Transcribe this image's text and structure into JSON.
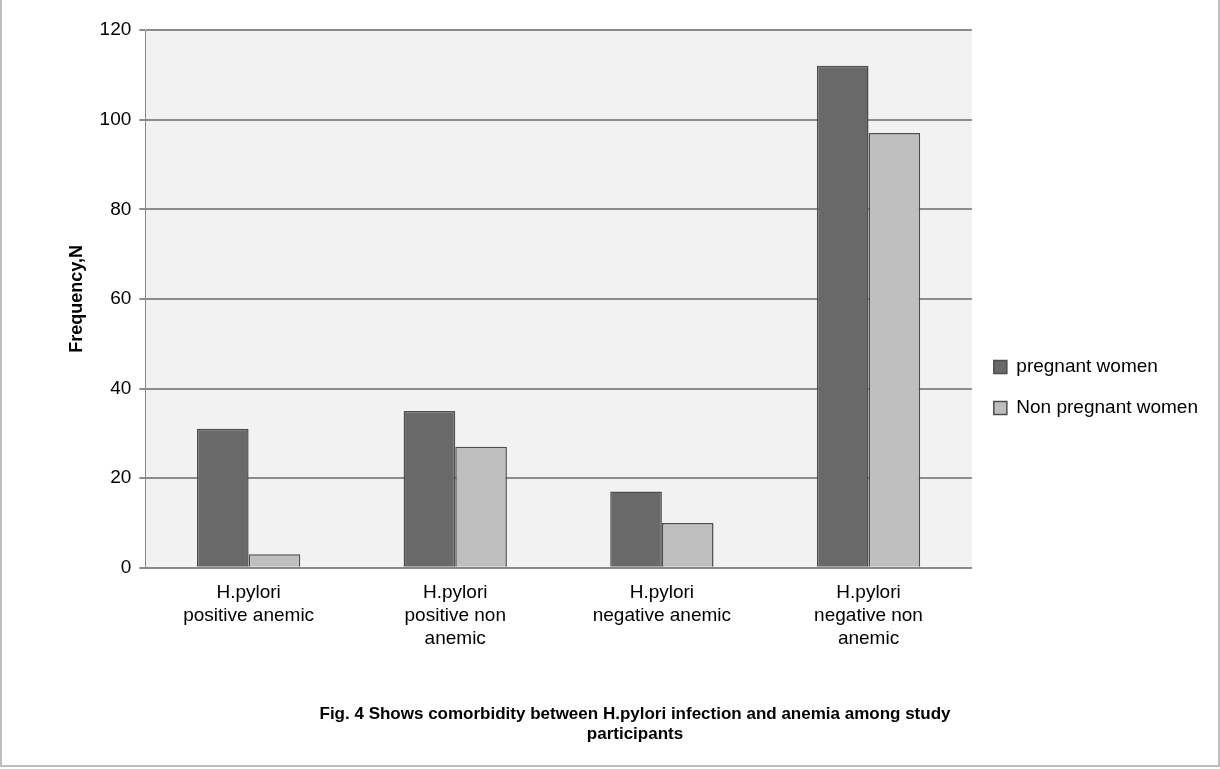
{
  "chart_data": {
    "type": "bar",
    "title": "Fig. 4 Shows comorbidity between H.pylori infection and anemia among study participants",
    "ylabel": "Frequency,N",
    "categories": [
      "H.pylori positive anemic",
      "H.pylori positive non anemic",
      "H.pylori negative anemic",
      "H.pylori negative non anemic"
    ],
    "series": [
      {
        "name": "pregnant women",
        "color": "#696969",
        "values": [
          31,
          35,
          17,
          112
        ]
      },
      {
        "name": "Non pregnant women",
        "color": "#bfbfbf",
        "values": [
          3,
          27,
          10,
          97
        ]
      }
    ],
    "ylim": [
      0,
      120
    ],
    "yticks": [
      0,
      20,
      40,
      60,
      80,
      100,
      120
    ],
    "grid": "y",
    "legend": "right"
  }
}
